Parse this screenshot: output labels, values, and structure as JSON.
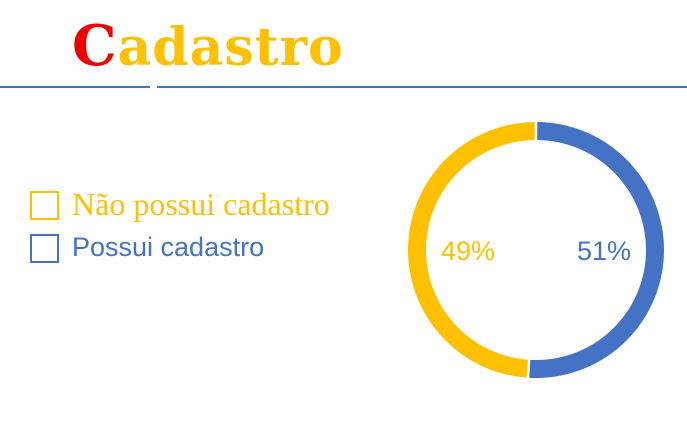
{
  "header": {
    "title_first": "C",
    "title_rest": "adastro"
  },
  "colors": {
    "accent_red": "#ee0000",
    "gold": "#ffc000",
    "blue": "#4472c4"
  },
  "chart_data": {
    "type": "pie",
    "variant": "donut",
    "title": "",
    "legend_placement": "left",
    "series": [
      {
        "name": "Não possui cadastro",
        "value": 49,
        "label": "49%",
        "color": "#ffc000"
      },
      {
        "name": "Possui cadastro",
        "value": 51,
        "label": "51%",
        "color": "#4472c4"
      }
    ]
  }
}
